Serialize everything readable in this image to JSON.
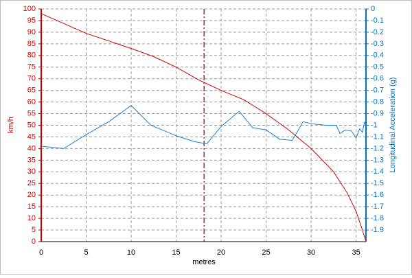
{
  "chart_data": {
    "type": "line",
    "x_label": "metres",
    "y_label": "km/h",
    "y2_label": "Longitudinal Acceleration (g)",
    "xlim": [
      0,
      36.1
    ],
    "xticks": [
      0,
      5,
      10,
      15,
      20,
      25,
      30,
      35
    ],
    "ylim": [
      0,
      100
    ],
    "yticks": [
      0,
      5,
      10,
      15,
      20,
      25,
      30,
      35,
      40,
      45,
      50,
      55,
      60,
      65,
      70,
      75,
      80,
      85,
      90,
      95,
      100
    ],
    "y2lim": [
      -2,
      0
    ],
    "y2ticks": [
      -1.9,
      -1.8,
      -1.7,
      -1.6,
      -1.5,
      -1.4,
      -1.3,
      -1.2,
      -1.1,
      -1,
      -0.9,
      -0.8,
      -0.7,
      -0.6,
      -0.5,
      -0.4,
      -0.3,
      -0.2,
      -0.1,
      0
    ],
    "y_color": "#cc0000",
    "y2_color": "#0070c0",
    "grid": true,
    "cursor_x": 18.1,
    "cursor_color": "#800000",
    "series": [
      {
        "color": "#cc0000",
        "x": [
          0,
          5,
          10,
          12.5,
          15,
          17.5,
          20,
          22.5,
          25,
          27.5,
          30,
          32.5,
          34,
          35,
          35.7,
          36.1
        ],
        "values": [
          98,
          89.5,
          83,
          79.5,
          75,
          69.5,
          65,
          61,
          55,
          48,
          40,
          30,
          21,
          13,
          5,
          0
        ]
      },
      {
        "color": "#1a7fd0",
        "axis": "y2",
        "x": [
          0,
          2.5,
          5,
          7.5,
          10,
          12.2,
          15,
          17,
          18.4,
          20,
          22,
          23.5,
          25,
          26.5,
          27.9,
          29.1,
          30.3,
          31.7,
          32.8,
          33.2,
          33.8,
          34.5,
          35,
          35.4,
          35.7,
          35.95,
          36.1
        ],
        "values": [
          -1.18,
          -1.2,
          -1.08,
          -0.97,
          -0.83,
          -1,
          -1.09,
          -1.14,
          -1.16,
          -1.01,
          -0.88,
          -1.02,
          -1.04,
          -1.12,
          -1.13,
          -0.97,
          -0.99,
          -1,
          -1,
          -1.07,
          -1.04,
          -1.05,
          -1.11,
          -1.03,
          -1.06,
          -0.97,
          -1.01
        ]
      }
    ]
  }
}
